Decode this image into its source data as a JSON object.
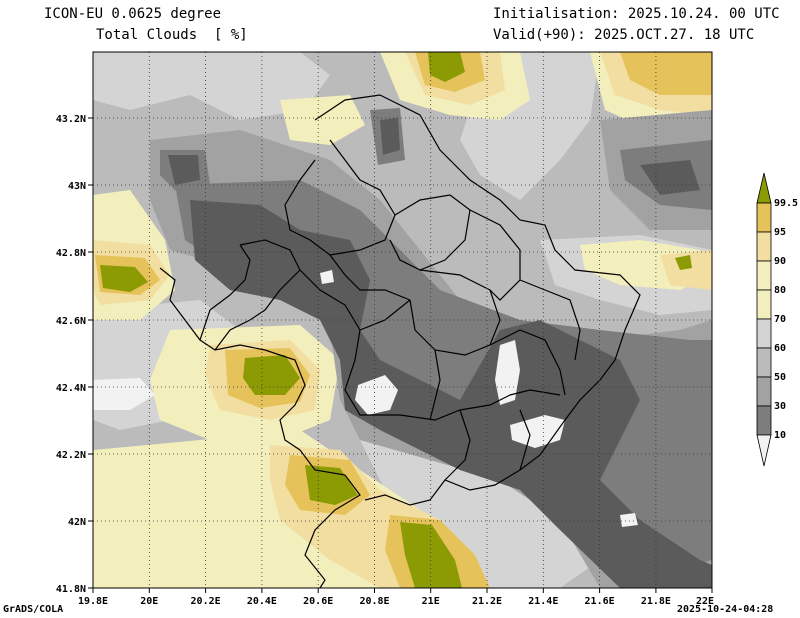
{
  "header": {
    "model": "ICON-EU 0.0625 degree",
    "variable": "Total Clouds  [ %]",
    "initialisation": "Initialisation: 2025.10.24. 00 UTC",
    "valid": "Valid(+90): 2025.OCT.27. 18 UTC"
  },
  "footer": {
    "software": "GrADS/COLA",
    "timestamp": "2025-10-24-04:28"
  },
  "map": {
    "lat_labels": [
      "43.2N",
      "43N",
      "42.8N",
      "42.6N",
      "42.4N",
      "42.2N",
      "42N",
      "41.8N"
    ],
    "lon_labels": [
      "19.8E",
      "20E",
      "20.2E",
      "20.4E",
      "20.6E",
      "20.8E",
      "21E",
      "21.2E",
      "21.4E",
      "21.6E",
      "21.8E",
      "22E"
    ],
    "lat_range": [
      41.8,
      43.4
    ],
    "lon_range": [
      19.8,
      22.0
    ]
  },
  "legend": {
    "labels": [
      "99.5",
      "95",
      "90",
      "80",
      "70",
      "60",
      "50",
      "30",
      "10"
    ],
    "colors": {
      "lt10": "#f2f2f2",
      "c10": "#5b5b5b",
      "c30": "#7d7d7d",
      "c50": "#a2a2a2",
      "c60": "#bbbbbb",
      "c70": "#d4d4d4",
      "c80": "#f3efbd",
      "c90": "#f1dea0",
      "c95": "#e6c25a",
      "c99": "#8c9a04"
    }
  }
}
